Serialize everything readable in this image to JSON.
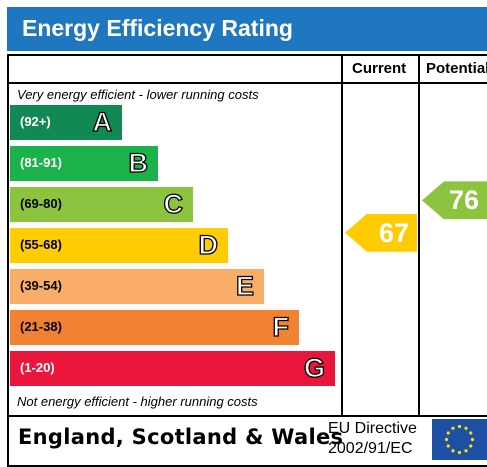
{
  "title": "Energy Efficiency Rating",
  "columns": {
    "current": "Current",
    "potential": "Potential"
  },
  "notes": {
    "top": "Very energy efficient - lower running costs",
    "bottom": "Not energy efficient - higher running costs"
  },
  "footer": {
    "country": "England, Scotland & Wales",
    "directive_line1": "EU Directive",
    "directive_line2": "2002/91/EC"
  },
  "colors": {
    "header": "#1f77c1",
    "A": "#108a52",
    "B": "#1bb14b",
    "C": "#8cc43f",
    "D": "#ffcc04",
    "E": "#f9ad68",
    "F": "#f08231",
    "G": "#e9153b"
  },
  "chart_data": {
    "type": "bar",
    "title": "Energy Efficiency Rating",
    "bands": [
      {
        "letter": "A",
        "range": "(92+)",
        "min": 92,
        "max": 100
      },
      {
        "letter": "B",
        "range": "(81-91)",
        "min": 81,
        "max": 91
      },
      {
        "letter": "C",
        "range": "(69-80)",
        "min": 69,
        "max": 80
      },
      {
        "letter": "D",
        "range": "(55-68)",
        "min": 55,
        "max": 68
      },
      {
        "letter": "E",
        "range": "(39-54)",
        "min": 39,
        "max": 54
      },
      {
        "letter": "F",
        "range": "(21-38)",
        "min": 21,
        "max": 38
      },
      {
        "letter": "G",
        "range": "(1-20)",
        "min": 1,
        "max": 20
      }
    ],
    "current": {
      "value": 67,
      "band": "D"
    },
    "potential": {
      "value": 76,
      "band": "C"
    }
  }
}
